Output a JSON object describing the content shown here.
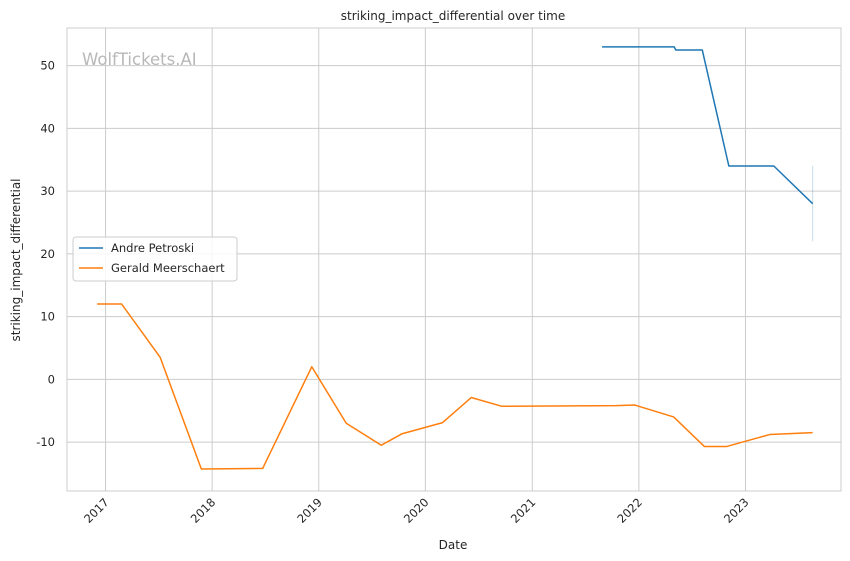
{
  "chart_data": {
    "type": "line",
    "title": "striking_impact_differential over time",
    "xlabel": "Date",
    "ylabel": "striking_impact_differential",
    "watermark": "WolfTickets.AI",
    "x_ticks": [
      "2017",
      "2018",
      "2019",
      "2020",
      "2021",
      "2022",
      "2023"
    ],
    "y_ticks": [
      -10,
      0,
      10,
      20,
      30,
      40,
      50
    ],
    "xlim": [
      "2016-08-22",
      "2023-11-24"
    ],
    "ylim": [
      -17.8,
      56.0
    ],
    "grid": true,
    "legend_position": "center-left",
    "series": [
      {
        "name": "Andre Petroski",
        "color": "#1f77b4",
        "points": [
          [
            "2021-08-28",
            53.0
          ],
          [
            "2022-05-02",
            53.0
          ],
          [
            "2022-05-07",
            52.5
          ],
          [
            "2022-08-06",
            52.5
          ],
          [
            "2022-11-05",
            34.0
          ],
          [
            "2023-04-08",
            34.0
          ],
          [
            "2023-08-19",
            28.0
          ]
        ],
        "error_bar": {
          "x": "2023-08-19",
          "low": 22.0,
          "high": 34.0
        }
      },
      {
        "name": "Gerald Meerschaert",
        "color": "#ff7f0e",
        "points": [
          [
            "2016-12-03",
            12.0
          ],
          [
            "2017-02-25",
            12.0
          ],
          [
            "2017-07-07",
            3.5
          ],
          [
            "2017-11-25",
            -14.3
          ],
          [
            "2018-06-23",
            -14.2
          ],
          [
            "2018-12-08",
            2.0
          ],
          [
            "2019-04-05",
            -7.0
          ],
          [
            "2019-08-03",
            -10.5
          ],
          [
            "2019-10-12",
            -8.7
          ],
          [
            "2020-02-29",
            -6.9
          ],
          [
            "2020-06-06",
            -2.9
          ],
          [
            "2020-09-19",
            -4.3
          ],
          [
            "2021-10-16",
            -4.2
          ],
          [
            "2021-12-18",
            -4.1
          ],
          [
            "2022-04-30",
            -6.0
          ],
          [
            "2022-08-13",
            -10.7
          ],
          [
            "2022-10-29",
            -10.7
          ],
          [
            "2023-03-25",
            -8.8
          ],
          [
            "2023-08-19",
            -8.5
          ]
        ]
      }
    ]
  }
}
